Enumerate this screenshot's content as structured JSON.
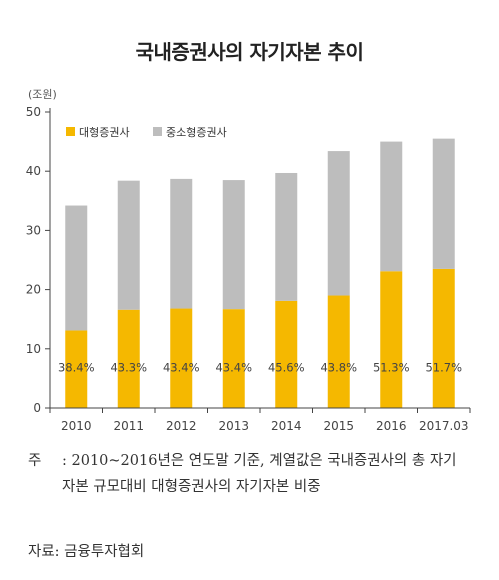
{
  "chart_data": {
    "type": "bar",
    "title": "국내증권사의 자기자본 추이",
    "unit": "(조원)",
    "categories": [
      "2010",
      "2011",
      "2012",
      "2013",
      "2014",
      "2015",
      "2016",
      "2017.03"
    ],
    "series": [
      {
        "name": "대형증권사",
        "color": "#f5b800",
        "values": [
          13.1,
          16.6,
          16.8,
          16.7,
          18.1,
          19.0,
          23.1,
          23.5
        ]
      },
      {
        "name": "중소형증권사",
        "color": "#bdbdbd",
        "values": [
          21.1,
          21.8,
          21.9,
          21.8,
          21.6,
          24.4,
          21.9,
          22.0
        ]
      }
    ],
    "data_labels": [
      "38.4%",
      "43.3%",
      "43.4%",
      "43.4%",
      "45.6%",
      "43.8%",
      "51.3%",
      "51.7%"
    ],
    "yticks": [
      "0",
      "10",
      "20",
      "30",
      "40",
      "50"
    ],
    "ylim": [
      0,
      50
    ],
    "legend_position": "top-left",
    "grid": false
  },
  "notes": {
    "note_label": "주",
    "note_text": ": 2010~2016년은 연도말 기준, 계열값은 국내증권사의 총 자기자본 규모대비 대형증권사의 자기자본 비중",
    "source": "자료: 금융투자협회"
  }
}
